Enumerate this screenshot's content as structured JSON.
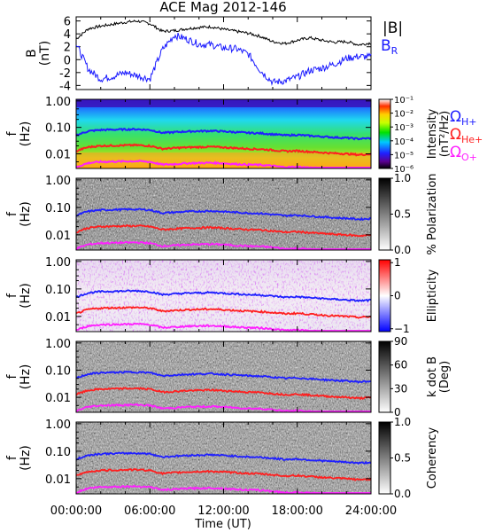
{
  "title": "ACE Mag 2012-146",
  "time_axis": {
    "label": "Time (UT)",
    "ticks": [
      "00:00:00",
      "06:00:00",
      "12:00:00",
      "18:00:00",
      "24:00:00"
    ],
    "range_hours": [
      0,
      24
    ]
  },
  "legend": {
    "b_total": "|B|",
    "b_r": "B",
    "b_r_sub": "R",
    "omega": "Ω",
    "h_sub": "H+",
    "he_sub": "He+",
    "o_sub": "O+"
  },
  "colors": {
    "b_total": "#000000",
    "b_r": "#1a1aff",
    "h_plus": "#1f1fff",
    "he_plus": "#ff1f1f",
    "o_plus": "#ff1fff"
  },
  "freq_ticks": [
    "1.00",
    "0.10",
    "0.01"
  ],
  "freq_axis_label": "f",
  "freq_axis_unit": "(Hz)",
  "panels": {
    "mag": {
      "ylabel": "B",
      "yunit": "(nT)",
      "yticks": [
        "6",
        "4",
        "2",
        "0",
        "-2",
        "-4"
      ],
      "ylim": [
        -4.5,
        6.5
      ]
    },
    "intensity": {
      "colorbar_label": "Intensity",
      "colorbar_unit": "(nT²/Hz)",
      "colorbar_ticks": [
        "10⁻¹",
        "10⁻²",
        "10⁻³",
        "10⁻⁴",
        "10⁻⁵",
        "10⁻⁶"
      ]
    },
    "polarization": {
      "colorbar_label": "% Polarization",
      "colorbar_ticks": [
        "1.0",
        "0.5",
        "0.0"
      ]
    },
    "ellipticity": {
      "colorbar_label": "Ellipticity",
      "colorbar_ticks": [
        "1",
        "0",
        "−1"
      ]
    },
    "kdotb": {
      "colorbar_label": "k dot B",
      "colorbar_unit": "(Deg)",
      "colorbar_ticks": [
        "90",
        "60",
        "30",
        "0"
      ]
    },
    "coherency": {
      "colorbar_label": "Coherency",
      "colorbar_ticks": [
        "1.0",
        "0.5",
        "0.0"
      ]
    }
  },
  "chart_data": {
    "type": "line",
    "x_hours": [
      0,
      1,
      2,
      3,
      4,
      5,
      6,
      7,
      8,
      9,
      10,
      11,
      12,
      13,
      14,
      15,
      16,
      17,
      18,
      19,
      20,
      21,
      22,
      23,
      24
    ],
    "series": [
      {
        "name": "|B|",
        "values": [
          3.2,
          4.8,
          5.2,
          5.5,
          5.8,
          6.0,
          5.6,
          4.4,
          4.5,
          4.8,
          5.0,
          5.1,
          4.7,
          4.4,
          4.1,
          3.6,
          2.8,
          2.5,
          3.0,
          3.4,
          3.0,
          2.7,
          2.8,
          2.3,
          2.6
        ]
      },
      {
        "name": "B_R",
        "values": [
          2.4,
          -1.5,
          -3.0,
          -2.6,
          -2.0,
          -2.5,
          -3.0,
          1.5,
          3.8,
          3.2,
          2.4,
          2.3,
          1.8,
          1.7,
          0.9,
          -1.7,
          -3.5,
          -3.3,
          -2.7,
          -1.7,
          -1.3,
          -0.7,
          0.2,
          0.5,
          0.4
        ]
      },
      {
        "name": "ΩH+",
        "values": [
          0.05,
          0.072,
          0.08,
          0.082,
          0.084,
          0.085,
          0.08,
          0.062,
          0.066,
          0.07,
          0.072,
          0.074,
          0.07,
          0.066,
          0.062,
          0.06,
          0.055,
          0.05,
          0.052,
          0.048,
          0.045,
          0.042,
          0.04,
          0.037,
          0.039
        ]
      },
      {
        "name": "ΩHe+",
        "values": [
          0.0125,
          0.018,
          0.02,
          0.0205,
          0.021,
          0.0212,
          0.02,
          0.0155,
          0.0165,
          0.0175,
          0.018,
          0.0185,
          0.0175,
          0.0165,
          0.0155,
          0.015,
          0.0138,
          0.0125,
          0.013,
          0.012,
          0.0112,
          0.0105,
          0.01,
          0.0092,
          0.0098
        ]
      },
      {
        "name": "ΩO+",
        "values": [
          0.0031,
          0.0045,
          0.005,
          0.0051,
          0.0052,
          0.0053,
          0.005,
          0.0039,
          0.0041,
          0.0044,
          0.0045,
          0.0046,
          0.0044,
          0.0041,
          0.0039,
          0.0038,
          0.0035,
          0.0031,
          0.0032,
          0.003,
          0.0028,
          0.0026,
          0.0025,
          0.0023,
          0.0024
        ]
      }
    ]
  }
}
